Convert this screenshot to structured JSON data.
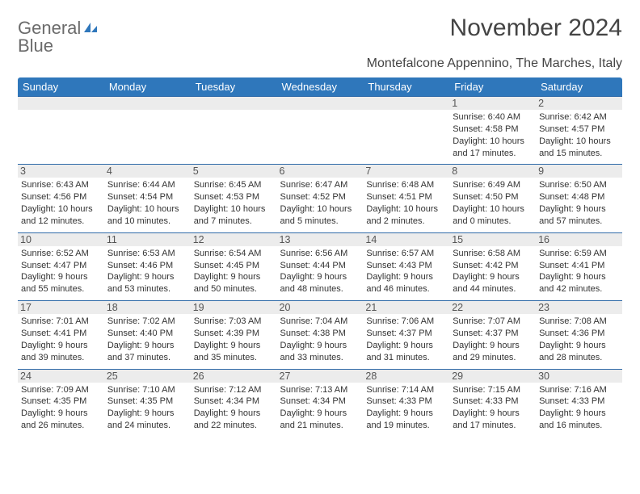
{
  "brand": {
    "part1": "General",
    "part2": "Blue"
  },
  "title": "November 2024",
  "subtitle": "Montefalcone Appennino, The Marches, Italy",
  "colors": {
    "header_bg": "#2f77bb",
    "header_text": "#ffffff",
    "daynum_bg": "#ececec",
    "border": "#2f6aa8",
    "logo_gray": "#6b6b6b",
    "logo_blue": "#2f77bb"
  },
  "day_headers": [
    "Sunday",
    "Monday",
    "Tuesday",
    "Wednesday",
    "Thursday",
    "Friday",
    "Saturday"
  ],
  "weeks": [
    [
      {
        "num": "",
        "sunrise": "",
        "sunset": "",
        "daylight": ""
      },
      {
        "num": "",
        "sunrise": "",
        "sunset": "",
        "daylight": ""
      },
      {
        "num": "",
        "sunrise": "",
        "sunset": "",
        "daylight": ""
      },
      {
        "num": "",
        "sunrise": "",
        "sunset": "",
        "daylight": ""
      },
      {
        "num": "",
        "sunrise": "",
        "sunset": "",
        "daylight": ""
      },
      {
        "num": "1",
        "sunrise": "Sunrise: 6:40 AM",
        "sunset": "Sunset: 4:58 PM",
        "daylight": "Daylight: 10 hours and 17 minutes."
      },
      {
        "num": "2",
        "sunrise": "Sunrise: 6:42 AM",
        "sunset": "Sunset: 4:57 PM",
        "daylight": "Daylight: 10 hours and 15 minutes."
      }
    ],
    [
      {
        "num": "3",
        "sunrise": "Sunrise: 6:43 AM",
        "sunset": "Sunset: 4:56 PM",
        "daylight": "Daylight: 10 hours and 12 minutes."
      },
      {
        "num": "4",
        "sunrise": "Sunrise: 6:44 AM",
        "sunset": "Sunset: 4:54 PM",
        "daylight": "Daylight: 10 hours and 10 minutes."
      },
      {
        "num": "5",
        "sunrise": "Sunrise: 6:45 AM",
        "sunset": "Sunset: 4:53 PM",
        "daylight": "Daylight: 10 hours and 7 minutes."
      },
      {
        "num": "6",
        "sunrise": "Sunrise: 6:47 AM",
        "sunset": "Sunset: 4:52 PM",
        "daylight": "Daylight: 10 hours and 5 minutes."
      },
      {
        "num": "7",
        "sunrise": "Sunrise: 6:48 AM",
        "sunset": "Sunset: 4:51 PM",
        "daylight": "Daylight: 10 hours and 2 minutes."
      },
      {
        "num": "8",
        "sunrise": "Sunrise: 6:49 AM",
        "sunset": "Sunset: 4:50 PM",
        "daylight": "Daylight: 10 hours and 0 minutes."
      },
      {
        "num": "9",
        "sunrise": "Sunrise: 6:50 AM",
        "sunset": "Sunset: 4:48 PM",
        "daylight": "Daylight: 9 hours and 57 minutes."
      }
    ],
    [
      {
        "num": "10",
        "sunrise": "Sunrise: 6:52 AM",
        "sunset": "Sunset: 4:47 PM",
        "daylight": "Daylight: 9 hours and 55 minutes."
      },
      {
        "num": "11",
        "sunrise": "Sunrise: 6:53 AM",
        "sunset": "Sunset: 4:46 PM",
        "daylight": "Daylight: 9 hours and 53 minutes."
      },
      {
        "num": "12",
        "sunrise": "Sunrise: 6:54 AM",
        "sunset": "Sunset: 4:45 PM",
        "daylight": "Daylight: 9 hours and 50 minutes."
      },
      {
        "num": "13",
        "sunrise": "Sunrise: 6:56 AM",
        "sunset": "Sunset: 4:44 PM",
        "daylight": "Daylight: 9 hours and 48 minutes."
      },
      {
        "num": "14",
        "sunrise": "Sunrise: 6:57 AM",
        "sunset": "Sunset: 4:43 PM",
        "daylight": "Daylight: 9 hours and 46 minutes."
      },
      {
        "num": "15",
        "sunrise": "Sunrise: 6:58 AM",
        "sunset": "Sunset: 4:42 PM",
        "daylight": "Daylight: 9 hours and 44 minutes."
      },
      {
        "num": "16",
        "sunrise": "Sunrise: 6:59 AM",
        "sunset": "Sunset: 4:41 PM",
        "daylight": "Daylight: 9 hours and 42 minutes."
      }
    ],
    [
      {
        "num": "17",
        "sunrise": "Sunrise: 7:01 AM",
        "sunset": "Sunset: 4:41 PM",
        "daylight": "Daylight: 9 hours and 39 minutes."
      },
      {
        "num": "18",
        "sunrise": "Sunrise: 7:02 AM",
        "sunset": "Sunset: 4:40 PM",
        "daylight": "Daylight: 9 hours and 37 minutes."
      },
      {
        "num": "19",
        "sunrise": "Sunrise: 7:03 AM",
        "sunset": "Sunset: 4:39 PM",
        "daylight": "Daylight: 9 hours and 35 minutes."
      },
      {
        "num": "20",
        "sunrise": "Sunrise: 7:04 AM",
        "sunset": "Sunset: 4:38 PM",
        "daylight": "Daylight: 9 hours and 33 minutes."
      },
      {
        "num": "21",
        "sunrise": "Sunrise: 7:06 AM",
        "sunset": "Sunset: 4:37 PM",
        "daylight": "Daylight: 9 hours and 31 minutes."
      },
      {
        "num": "22",
        "sunrise": "Sunrise: 7:07 AM",
        "sunset": "Sunset: 4:37 PM",
        "daylight": "Daylight: 9 hours and 29 minutes."
      },
      {
        "num": "23",
        "sunrise": "Sunrise: 7:08 AM",
        "sunset": "Sunset: 4:36 PM",
        "daylight": "Daylight: 9 hours and 28 minutes."
      }
    ],
    [
      {
        "num": "24",
        "sunrise": "Sunrise: 7:09 AM",
        "sunset": "Sunset: 4:35 PM",
        "daylight": "Daylight: 9 hours and 26 minutes."
      },
      {
        "num": "25",
        "sunrise": "Sunrise: 7:10 AM",
        "sunset": "Sunset: 4:35 PM",
        "daylight": "Daylight: 9 hours and 24 minutes."
      },
      {
        "num": "26",
        "sunrise": "Sunrise: 7:12 AM",
        "sunset": "Sunset: 4:34 PM",
        "daylight": "Daylight: 9 hours and 22 minutes."
      },
      {
        "num": "27",
        "sunrise": "Sunrise: 7:13 AM",
        "sunset": "Sunset: 4:34 PM",
        "daylight": "Daylight: 9 hours and 21 minutes."
      },
      {
        "num": "28",
        "sunrise": "Sunrise: 7:14 AM",
        "sunset": "Sunset: 4:33 PM",
        "daylight": "Daylight: 9 hours and 19 minutes."
      },
      {
        "num": "29",
        "sunrise": "Sunrise: 7:15 AM",
        "sunset": "Sunset: 4:33 PM",
        "daylight": "Daylight: 9 hours and 17 minutes."
      },
      {
        "num": "30",
        "sunrise": "Sunrise: 7:16 AM",
        "sunset": "Sunset: 4:33 PM",
        "daylight": "Daylight: 9 hours and 16 minutes."
      }
    ]
  ]
}
